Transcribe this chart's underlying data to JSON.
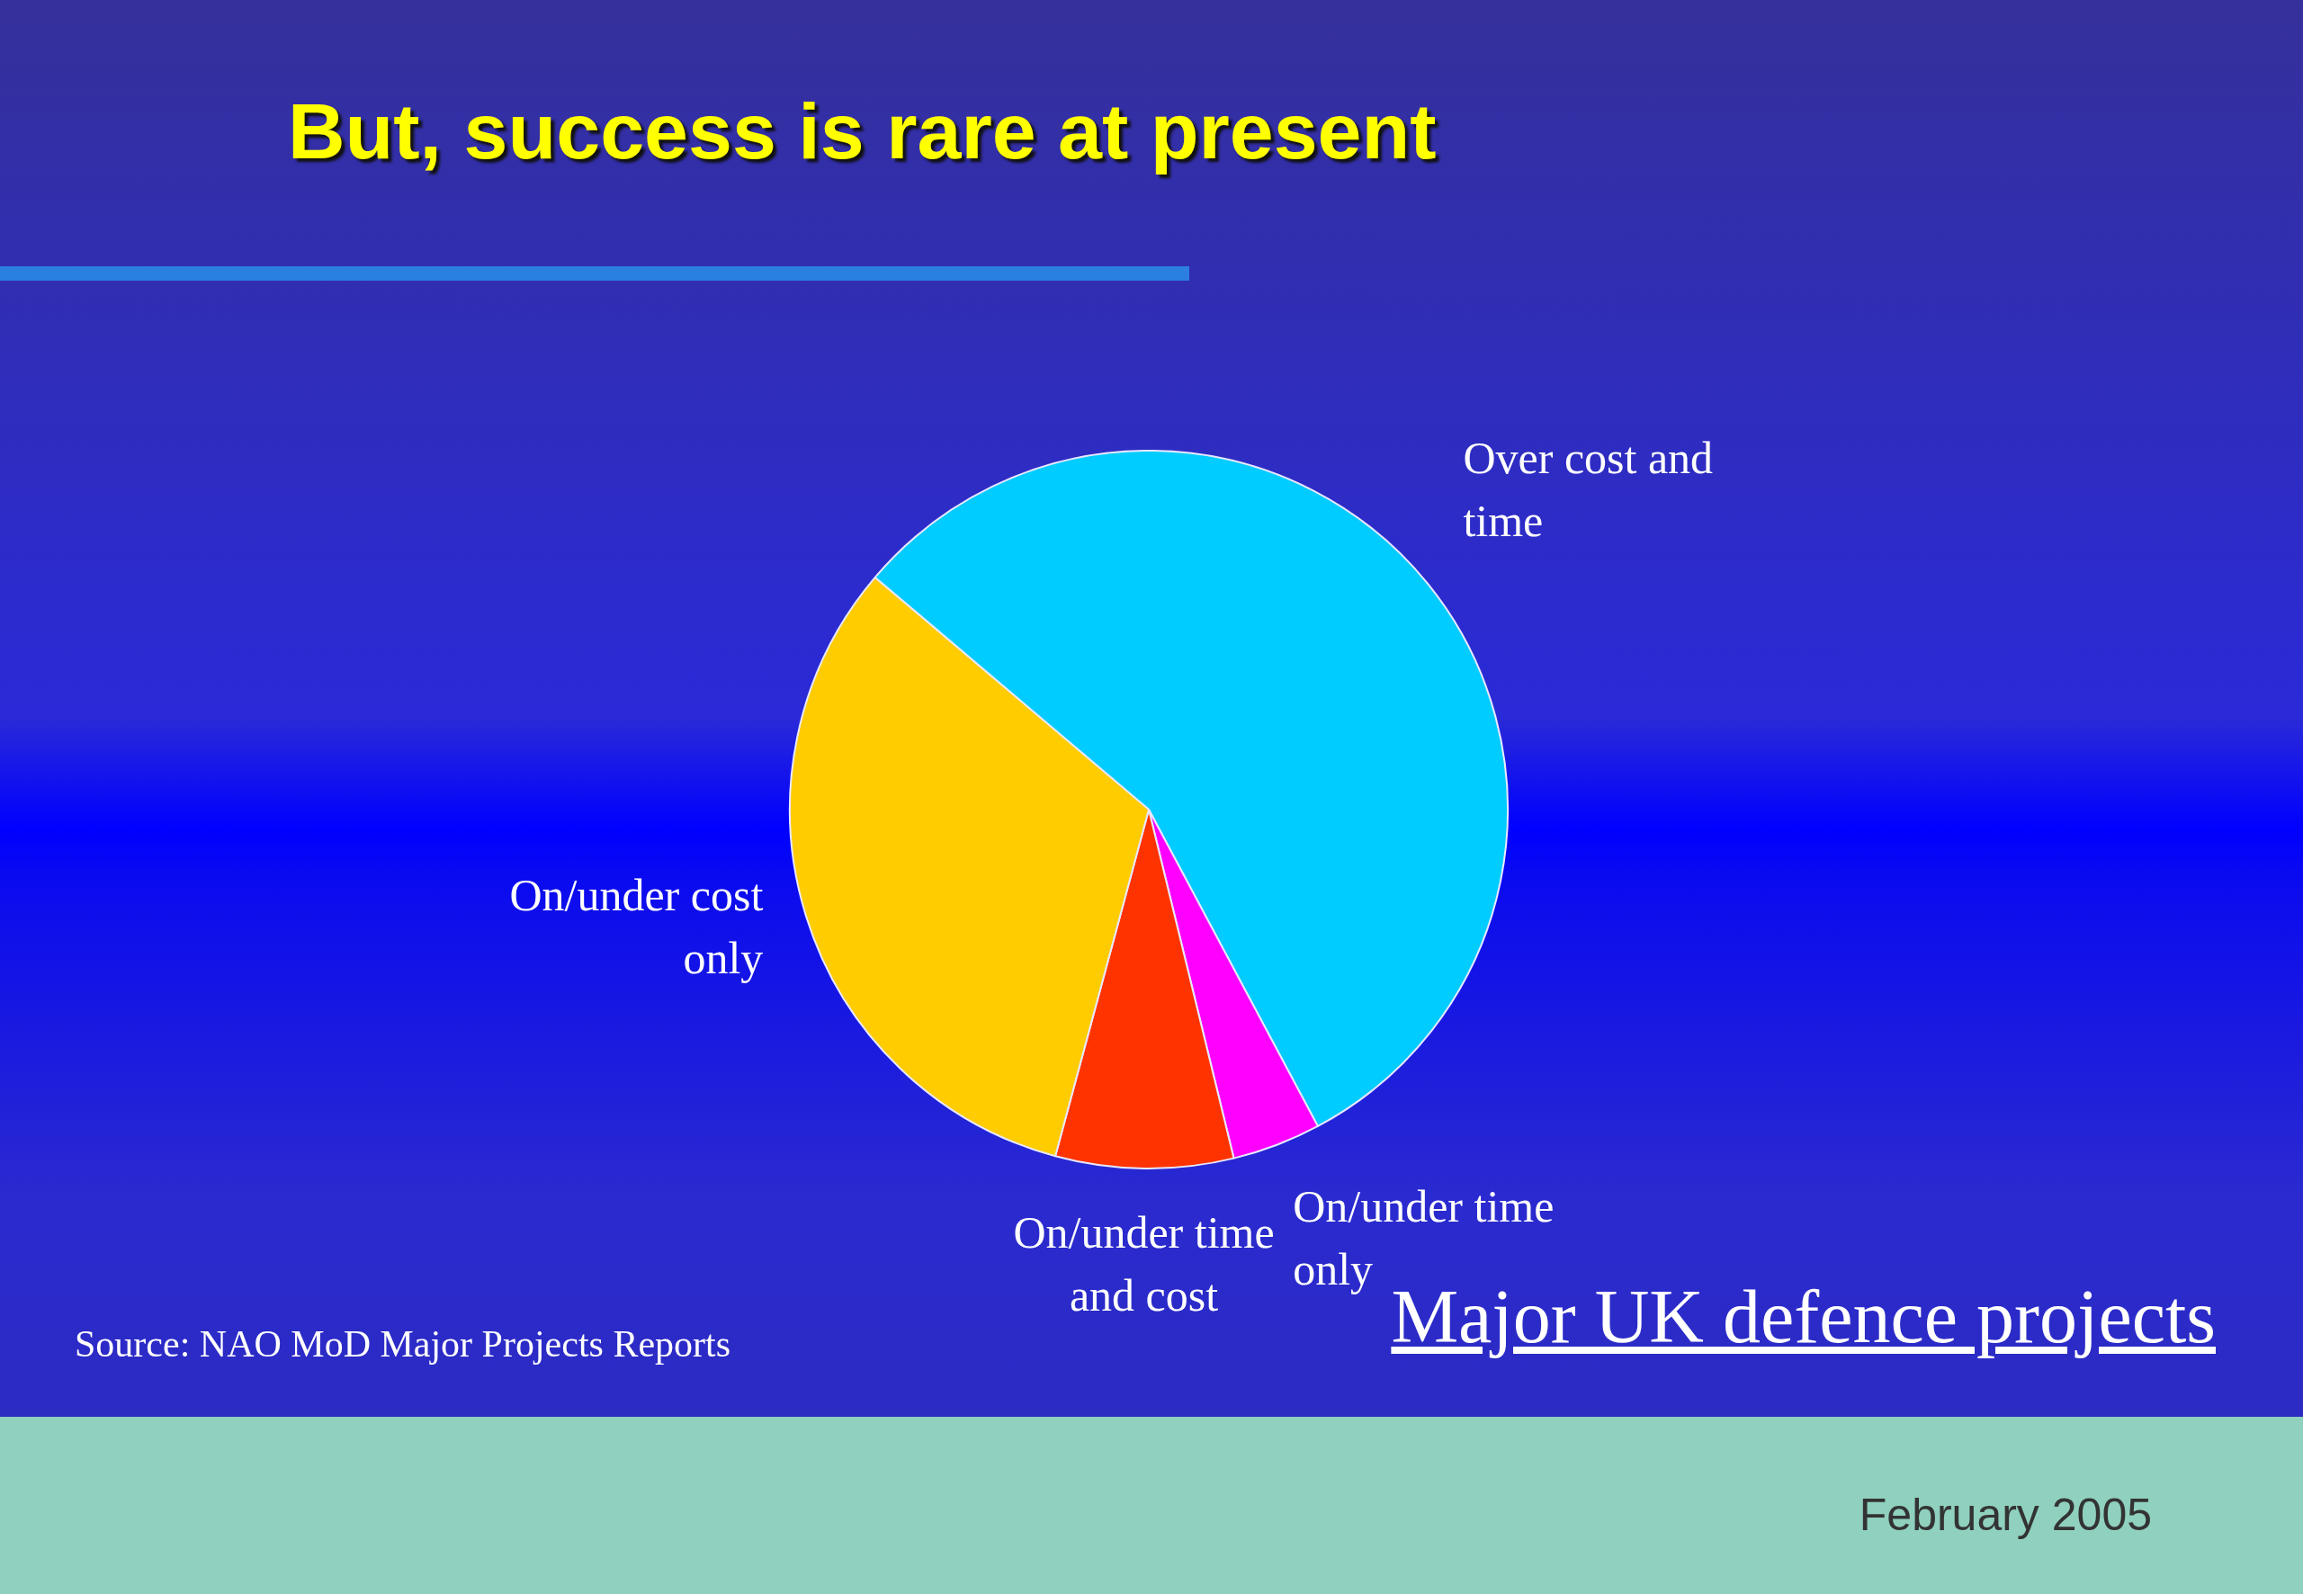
{
  "chart_data": {
    "type": "pie",
    "title": "But, success is rare at present",
    "categories": [
      "Over cost and time",
      "On/under time only",
      "On/under time and cost",
      "On/under cost only"
    ],
    "values": [
      56,
      4,
      8,
      32
    ],
    "colors": [
      "#00ccff",
      "#ff00ff",
      "#ff3300",
      "#ffcc00"
    ],
    "legend": false,
    "annotations": [
      "Source: NAO MoD Major Projects Reports",
      "Major UK defence projects",
      "February 2005"
    ]
  }
}
